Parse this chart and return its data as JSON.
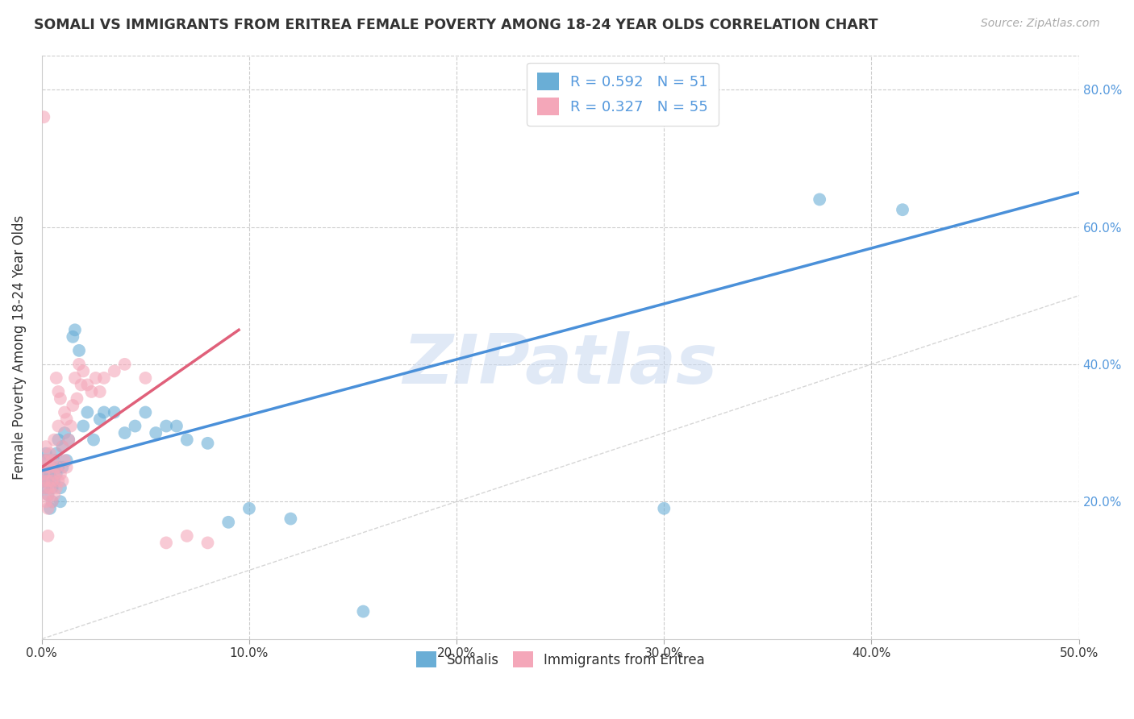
{
  "title": "SOMALI VS IMMIGRANTS FROM ERITREA FEMALE POVERTY AMONG 18-24 YEAR OLDS CORRELATION CHART",
  "source": "Source: ZipAtlas.com",
  "ylabel": "Female Poverty Among 18-24 Year Olds",
  "xlim": [
    0.0,
    0.5
  ],
  "ylim": [
    0.0,
    0.85
  ],
  "xticks": [
    0.0,
    0.1,
    0.2,
    0.3,
    0.4,
    0.5
  ],
  "yticks": [
    0.0,
    0.2,
    0.4,
    0.6,
    0.8
  ],
  "xticklabels": [
    "0.0%",
    "10.0%",
    "20.0%",
    "30.0%",
    "40.0%",
    "50.0%"
  ],
  "yticklabels_right": [
    "",
    "20.0%",
    "40.0%",
    "60.0%",
    "80.0%"
  ],
  "blue_R": 0.592,
  "blue_N": 51,
  "pink_R": 0.327,
  "pink_N": 55,
  "blue_color": "#6aaed6",
  "pink_color": "#f4a7b9",
  "blue_line_color": "#4a90d9",
  "pink_line_color": "#e0607a",
  "grid_color": "#cccccc",
  "watermark": "ZIPatlas",
  "watermark_color": "#c8d8f0",
  "background_color": "#ffffff",
  "tick_color": "#5599dd",
  "somali_x": [
    0.001,
    0.001,
    0.001,
    0.002,
    0.002,
    0.002,
    0.003,
    0.003,
    0.003,
    0.004,
    0.004,
    0.005,
    0.005,
    0.005,
    0.006,
    0.006,
    0.007,
    0.007,
    0.008,
    0.008,
    0.009,
    0.009,
    0.01,
    0.01,
    0.011,
    0.012,
    0.013,
    0.015,
    0.016,
    0.018,
    0.02,
    0.022,
    0.025,
    0.028,
    0.03,
    0.035,
    0.04,
    0.045,
    0.05,
    0.055,
    0.06,
    0.065,
    0.07,
    0.08,
    0.09,
    0.1,
    0.12,
    0.155,
    0.3,
    0.375,
    0.415
  ],
  "somali_y": [
    0.24,
    0.26,
    0.23,
    0.25,
    0.22,
    0.27,
    0.23,
    0.26,
    0.21,
    0.24,
    0.19,
    0.25,
    0.22,
    0.2,
    0.23,
    0.26,
    0.27,
    0.24,
    0.29,
    0.25,
    0.2,
    0.22,
    0.28,
    0.25,
    0.3,
    0.26,
    0.29,
    0.44,
    0.45,
    0.42,
    0.31,
    0.33,
    0.29,
    0.32,
    0.33,
    0.33,
    0.3,
    0.31,
    0.33,
    0.3,
    0.31,
    0.31,
    0.29,
    0.285,
    0.17,
    0.19,
    0.175,
    0.04,
    0.19,
    0.64,
    0.625
  ],
  "eritrea_x": [
    0.001,
    0.001,
    0.001,
    0.002,
    0.002,
    0.002,
    0.002,
    0.003,
    0.003,
    0.003,
    0.003,
    0.004,
    0.004,
    0.004,
    0.005,
    0.005,
    0.005,
    0.006,
    0.006,
    0.006,
    0.007,
    0.007,
    0.007,
    0.008,
    0.008,
    0.008,
    0.009,
    0.009,
    0.01,
    0.01,
    0.011,
    0.011,
    0.012,
    0.012,
    0.013,
    0.014,
    0.015,
    0.016,
    0.017,
    0.018,
    0.019,
    0.02,
    0.022,
    0.024,
    0.026,
    0.028,
    0.03,
    0.035,
    0.04,
    0.05,
    0.06,
    0.07,
    0.08,
    0.003,
    0.001
  ],
  "eritrea_y": [
    0.24,
    0.23,
    0.26,
    0.22,
    0.25,
    0.2,
    0.28,
    0.23,
    0.26,
    0.21,
    0.19,
    0.22,
    0.25,
    0.27,
    0.2,
    0.23,
    0.26,
    0.21,
    0.24,
    0.29,
    0.22,
    0.25,
    0.38,
    0.23,
    0.36,
    0.31,
    0.24,
    0.35,
    0.23,
    0.28,
    0.26,
    0.33,
    0.25,
    0.32,
    0.29,
    0.31,
    0.34,
    0.38,
    0.35,
    0.4,
    0.37,
    0.39,
    0.37,
    0.36,
    0.38,
    0.36,
    0.38,
    0.39,
    0.4,
    0.38,
    0.14,
    0.15,
    0.14,
    0.15,
    0.76
  ],
  "blue_trend": [
    0.0,
    0.5,
    0.245,
    0.65
  ],
  "pink_trend": [
    0.0,
    0.095,
    0.25,
    0.45
  ]
}
